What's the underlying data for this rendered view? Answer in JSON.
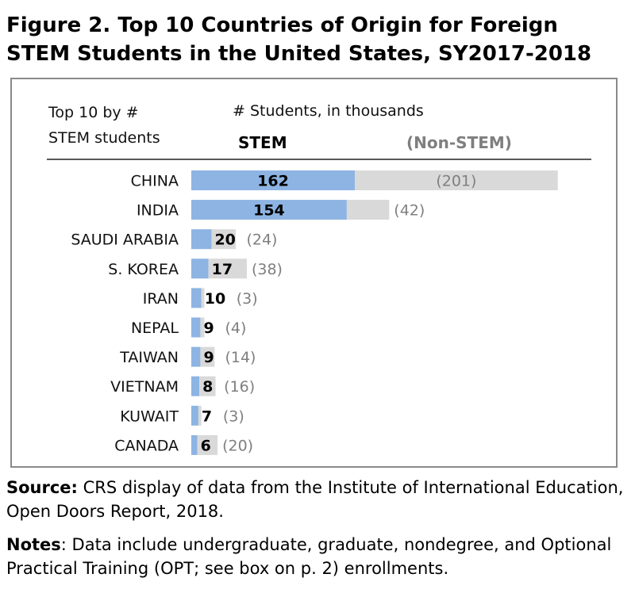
{
  "title": {
    "line1": "Figure 2. Top 10 Countries of Origin for Foreign",
    "line2": "STEM Students in the United States, SY2017-2018"
  },
  "chart_data": {
    "type": "bar",
    "orientation": "horizontal",
    "stacked": true,
    "header_left": [
      "Top 10 by #",
      "STEM students"
    ],
    "subtitle": "# Students, in thousands",
    "categories": [
      "CHINA",
      "INDIA",
      "SAUDI ARABIA",
      "S. KOREA",
      "IRAN",
      "NEPAL",
      "TAIWAN",
      "VIETNAM",
      "KUWAIT",
      "CANADA"
    ],
    "series": [
      {
        "name": "STEM",
        "values": [
          162,
          154,
          20,
          17,
          10,
          9,
          9,
          8,
          7,
          6
        ],
        "label_format": "{v}"
      },
      {
        "name": "(Non-STEM)",
        "values": [
          201,
          42,
          24,
          38,
          3,
          4,
          14,
          16,
          3,
          20
        ],
        "label_format": "({v})"
      }
    ],
    "colors": {
      "stem": "#8db4e2",
      "non_stem": "#d9d9d9",
      "stem_label": "#000000",
      "non_stem_label": "#7f7f7f"
    },
    "grid": false,
    "legend": "header-top"
  },
  "source": {
    "lead": "Source:",
    "text": " CRS display of data from the Institute of International Education, Open Doors Report, 2018."
  },
  "notes": {
    "lead": "Notes",
    "text": ": Data include undergraduate, graduate, nondegree, and Optional Practical Training (OPT; see box on p. 2) enrollments."
  }
}
